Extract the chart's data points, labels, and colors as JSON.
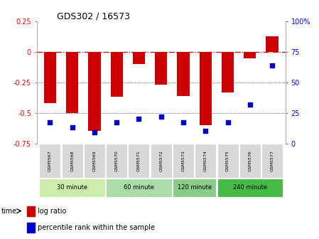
{
  "title": "GDS302 / 16573",
  "samples": [
    "GSM5567",
    "GSM5568",
    "GSM5569",
    "GSM5570",
    "GSM5571",
    "GSM5572",
    "GSM5573",
    "GSM5574",
    "GSM5575",
    "GSM5576",
    "GSM5577"
  ],
  "log_ratio": [
    -0.42,
    -0.5,
    -0.65,
    -0.37,
    -0.1,
    -0.27,
    -0.36,
    -0.6,
    -0.33,
    -0.05,
    0.13
  ],
  "percentile": [
    17,
    13,
    9,
    17,
    20,
    22,
    17,
    10,
    17,
    32,
    64
  ],
  "bar_color": "#cc0000",
  "dot_color": "#0000cc",
  "ylim_left": [
    -0.75,
    0.25
  ],
  "ylim_right": [
    0,
    100
  ],
  "yticks_left": [
    -0.75,
    -0.5,
    -0.25,
    0,
    0.25
  ],
  "yticks_right": [
    0,
    25,
    50,
    75,
    100
  ],
  "hline_color": "#cc0000",
  "grid_lines": [
    -0.25,
    -0.5
  ],
  "group_defs": [
    {
      "label": "30 minute",
      "xstart": -0.48,
      "xend": 2.48,
      "color": "#cceeaa"
    },
    {
      "label": "60 minute",
      "xstart": 2.52,
      "xend": 5.48,
      "color": "#aaddaa"
    },
    {
      "label": "120 minute",
      "xstart": 5.52,
      "xend": 7.48,
      "color": "#88cc88"
    },
    {
      "label": "240 minute",
      "xstart": 7.52,
      "xend": 10.48,
      "color": "#44bb44"
    }
  ],
  "legend_bar_label": "log ratio",
  "legend_dot_label": "percentile rank within the sample",
  "time_label": "time"
}
